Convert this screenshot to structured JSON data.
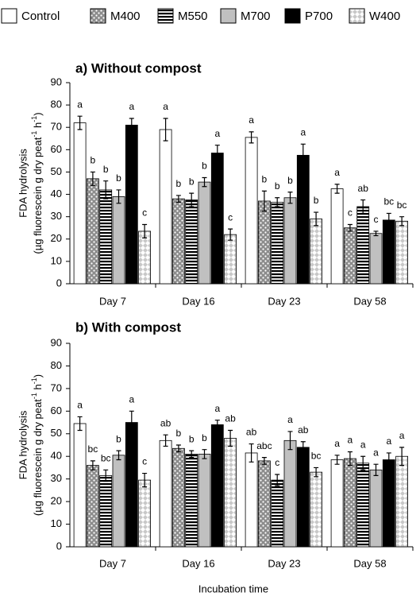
{
  "chart_data": [
    {
      "type": "bar",
      "title": "a) Without compost",
      "categories": [
        "Day 7",
        "Day 16",
        "Day 23",
        "Day 58"
      ],
      "ylabel": "FDA hydrolysis",
      "ylabel_unit": [
        "(µg fluorescein g dry peat",
        "-1",
        " h",
        "-1",
        ")"
      ],
      "ylim": [
        0,
        90
      ],
      "yticks": [
        0,
        10,
        20,
        30,
        40,
        50,
        60,
        70,
        80,
        90
      ],
      "series": [
        {
          "name": "Control",
          "color": "#ffffff",
          "pattern": "solid",
          "values": [
            72,
            69,
            65.5,
            42.5
          ],
          "errors": [
            3,
            5,
            2.5,
            2
          ],
          "letters": [
            "a",
            "a",
            "a",
            "a"
          ]
        },
        {
          "name": "M400",
          "color": "#8c8c8c",
          "pattern": "dots",
          "values": [
            47,
            38,
            37,
            25
          ],
          "errors": [
            3,
            1.5,
            4.5,
            1.5
          ],
          "letters": [
            "b",
            "b",
            "b",
            "c"
          ]
        },
        {
          "name": "M550",
          "color": "#000000",
          "pattern": "hstripes",
          "values": [
            42,
            37.5,
            36.5,
            34.5
          ],
          "errors": [
            4,
            3,
            2,
            3
          ],
          "letters": [
            "b",
            "b",
            "b",
            "ab"
          ]
        },
        {
          "name": "M700",
          "color": "#c0c0c0",
          "pattern": "solid",
          "values": [
            39,
            45.5,
            38.5,
            22.5
          ],
          "errors": [
            3,
            2,
            2.5,
            1
          ],
          "letters": [
            "b",
            "b",
            "b",
            "c"
          ]
        },
        {
          "name": "P700",
          "color": "#000000",
          "pattern": "solid",
          "values": [
            71,
            58.5,
            57.5,
            28.5
          ],
          "errors": [
            3,
            3.5,
            5,
            3
          ],
          "letters": [
            "a",
            "a",
            "a",
            "bc"
          ]
        },
        {
          "name": "W400",
          "color": "#c8c8c8",
          "pattern": "diamonds",
          "values": [
            23.5,
            22,
            29,
            28
          ],
          "errors": [
            3,
            2.5,
            3,
            2
          ],
          "letters": [
            "c",
            "c",
            "b",
            "bc"
          ]
        }
      ]
    },
    {
      "type": "bar",
      "title": "b) With compost",
      "categories": [
        "Day 7",
        "Day 16",
        "Day 23",
        "Day 58"
      ],
      "ylabel": "FDA hydrolysis",
      "ylabel_unit": [
        "(µg fluorescein g dry peat",
        "-1",
        " h",
        "-1",
        ")"
      ],
      "xlabel": "Incubation time",
      "ylim": [
        0,
        90
      ],
      "yticks": [
        0,
        10,
        20,
        30,
        40,
        50,
        60,
        70,
        80,
        90
      ],
      "series": [
        {
          "color": "#ffffff",
          "pattern": "solid",
          "values": [
            54.5,
            47,
            41.5,
            38.5
          ],
          "errors": [
            3,
            2.5,
            4,
            2
          ],
          "letters": [
            "a",
            "ab",
            "ab",
            "a"
          ]
        },
        {
          "color": "#8c8c8c",
          "pattern": "dots",
          "values": [
            36,
            43.5,
            38,
            39
          ],
          "errors": [
            2,
            1.5,
            1.5,
            3
          ],
          "letters": [
            "bc",
            "b",
            "abc",
            "a"
          ]
        },
        {
          "color": "#000000",
          "pattern": "hstripes",
          "values": [
            31.5,
            41,
            29.5,
            37
          ],
          "errors": [
            2.5,
            1.5,
            2.5,
            3
          ],
          "letters": [
            "bc",
            "b",
            "c",
            "a"
          ]
        },
        {
          "color": "#c0c0c0",
          "pattern": "solid",
          "values": [
            40.5,
            41,
            47,
            34
          ],
          "errors": [
            2,
            2,
            4,
            2.5
          ],
          "letters": [
            "b",
            "b",
            "a",
            "a"
          ]
        },
        {
          "color": "#000000",
          "pattern": "solid",
          "values": [
            55,
            54,
            44,
            38.5
          ],
          "errors": [
            5,
            2,
            2.5,
            3
          ],
          "letters": [
            "a",
            "a",
            "ab",
            "a"
          ]
        },
        {
          "color": "#c8c8c8",
          "pattern": "diamonds",
          "values": [
            29.5,
            48,
            33,
            40
          ],
          "errors": [
            3,
            3.5,
            2,
            4
          ],
          "letters": [
            "c",
            "ab",
            "bc",
            "a"
          ]
        }
      ]
    }
  ]
}
